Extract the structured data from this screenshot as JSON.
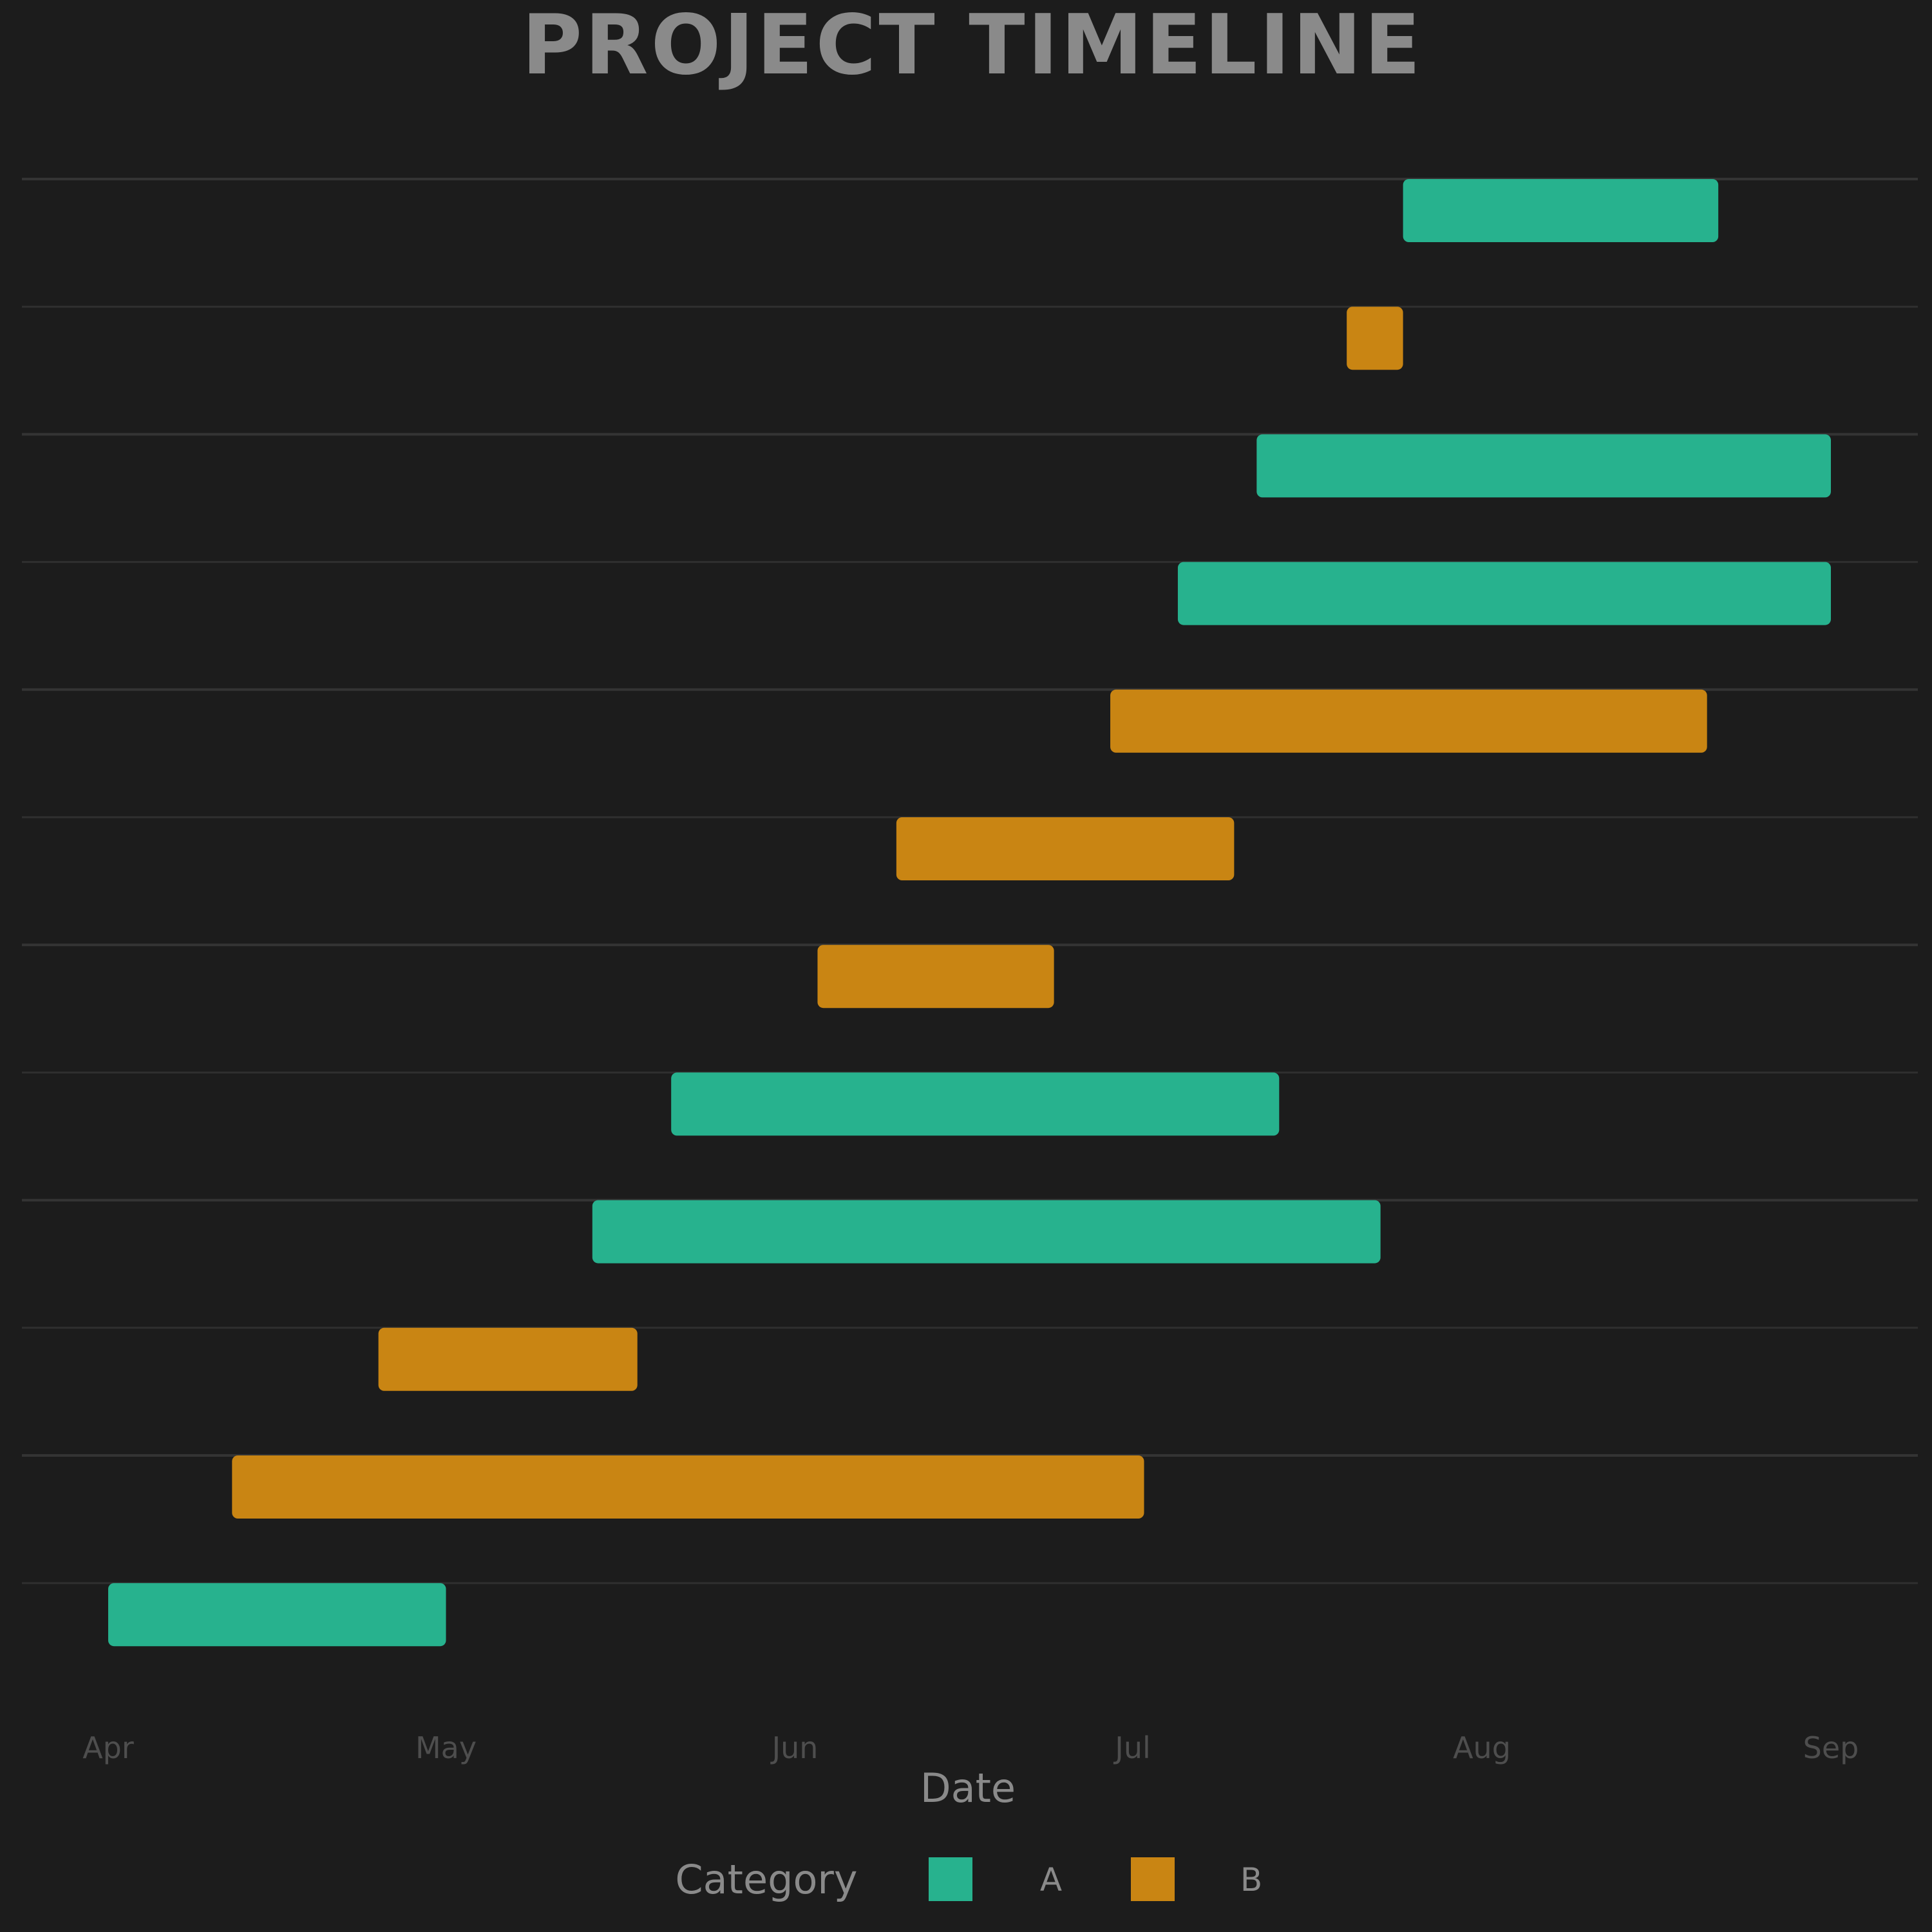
{
  "chart_data": {
    "type": "gantt",
    "title": "PROJECT TIMELINE",
    "xlabel": "Date",
    "ylabel": "",
    "x_ticks": [
      "Apr",
      "May",
      "Jun",
      "Jul",
      "Aug",
      "Sep"
    ],
    "xlim": [
      "2024-04-01",
      "2024-09-01"
    ],
    "grid": true,
    "legend": {
      "title": "Category",
      "placement": "bottom-center",
      "entries": [
        {
          "label": "A",
          "color": "#27b28e"
        },
        {
          "label": "B",
          "color": "#c98513"
        }
      ]
    },
    "tasks": [
      {
        "category": "A",
        "start": "2024-04-01",
        "end": "2024-05-01"
      },
      {
        "category": "B",
        "start": "2024-04-12",
        "end": "2024-07-02"
      },
      {
        "category": "B",
        "start": "2024-04-25",
        "end": "2024-05-18"
      },
      {
        "category": "A",
        "start": "2024-05-14",
        "end": "2024-07-23"
      },
      {
        "category": "A",
        "start": "2024-05-21",
        "end": "2024-07-14"
      },
      {
        "category": "B",
        "start": "2024-06-03",
        "end": "2024-06-24"
      },
      {
        "category": "B",
        "start": "2024-06-10",
        "end": "2024-07-10"
      },
      {
        "category": "B",
        "start": "2024-06-29",
        "end": "2024-08-21"
      },
      {
        "category": "A",
        "start": "2024-07-05",
        "end": "2024-09-01"
      },
      {
        "category": "A",
        "start": "2024-07-12",
        "end": "2024-09-01"
      },
      {
        "category": "B",
        "start": "2024-07-20",
        "end": "2024-07-25"
      },
      {
        "category": "A",
        "start": "2024-07-25",
        "end": "2024-08-22"
      }
    ]
  }
}
